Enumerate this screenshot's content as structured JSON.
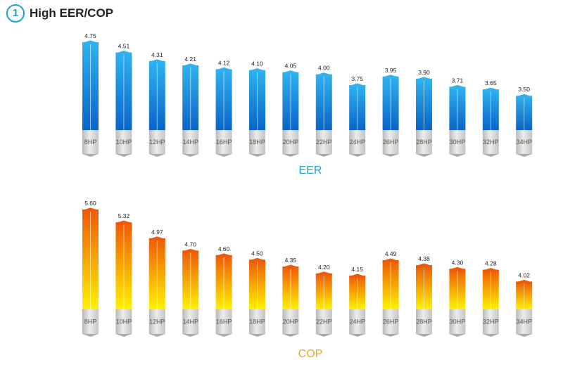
{
  "header": {
    "badge": "1",
    "title": "High EER/COP"
  },
  "colors": {
    "eer_top": "#2fb2ef",
    "eer_bottom": "#0a64c8",
    "cop_top": "#ee5a06",
    "cop_bottom": "#fff200",
    "eer_label": "#1aa0dc",
    "cop_label": "#f5a623"
  },
  "chart_data": [
    {
      "type": "bar",
      "title": "EER",
      "categories": [
        "8HP",
        "10HP",
        "12HP",
        "14HP",
        "16HP",
        "18HP",
        "20HP",
        "22HP",
        "24HP",
        "26HP",
        "28HP",
        "30HP",
        "32HP",
        "34HP"
      ],
      "values": [
        4.75,
        4.51,
        4.31,
        4.21,
        4.12,
        4.1,
        4.05,
        4.0,
        3.75,
        3.95,
        3.9,
        3.71,
        3.65,
        3.5
      ],
      "labels": [
        "4.75",
        "4.51",
        "4.31",
        "4.21",
        "4.12",
        "4.10",
        "4.05",
        "4.00",
        "3.75",
        "3.95",
        "3.90",
        "3.71",
        "3.65",
        "3.50"
      ],
      "ylim": [
        2.7,
        4.75
      ]
    },
    {
      "type": "bar",
      "title": "COP",
      "categories": [
        "8HP",
        "10HP",
        "12HP",
        "14HP",
        "16HP",
        "18HP",
        "20HP",
        "22HP",
        "24HP",
        "26HP",
        "28HP",
        "30HP",
        "32HP",
        "34HP"
      ],
      "values": [
        5.6,
        5.32,
        4.97,
        4.7,
        4.6,
        4.5,
        4.35,
        4.2,
        4.15,
        4.49,
        4.38,
        4.3,
        4.28,
        4.02
      ],
      "labels": [
        "5.60",
        "5.32",
        "4.97",
        "4.70",
        "4.60",
        "4.50",
        "4.35",
        "4.20",
        "4.15",
        "4.49",
        "4.38",
        "4.30",
        "4.28",
        "4.02"
      ],
      "ylim": [
        3.41,
        5.6
      ]
    }
  ]
}
